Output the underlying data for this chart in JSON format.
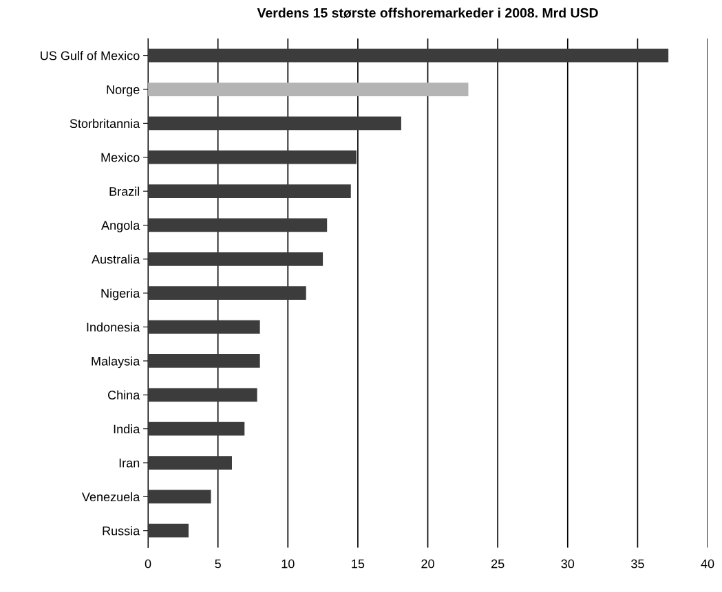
{
  "chart_data": {
    "type": "bar",
    "orientation": "horizontal",
    "title": "Verdens 15 største offshoremarkeder i 2008. Mrd USD",
    "categories": [
      "US Gulf of Mexico",
      "Norge",
      "Storbritannia",
      "Mexico",
      "Brazil",
      "Angola",
      "Australia",
      "Nigeria",
      "Indonesia",
      "Malaysia",
      "China",
      "India",
      "Iran",
      "Venezuela",
      "Russia"
    ],
    "values": [
      37.2,
      22.9,
      18.1,
      14.9,
      14.5,
      12.8,
      12.5,
      11.3,
      8.0,
      8.0,
      7.8,
      6.9,
      6.0,
      4.5,
      2.9
    ],
    "colors": [
      "#3c3c3c",
      "#b4b4b4",
      "#3c3c3c",
      "#3c3c3c",
      "#3c3c3c",
      "#3c3c3c",
      "#3c3c3c",
      "#3c3c3c",
      "#3c3c3c",
      "#3c3c3c",
      "#3c3c3c",
      "#3c3c3c",
      "#3c3c3c",
      "#3c3c3c",
      "#3c3c3c"
    ],
    "xlim": [
      0,
      40
    ],
    "xticks": [
      0,
      5,
      10,
      15,
      20,
      25,
      30,
      35,
      40
    ],
    "grid": "x"
  }
}
